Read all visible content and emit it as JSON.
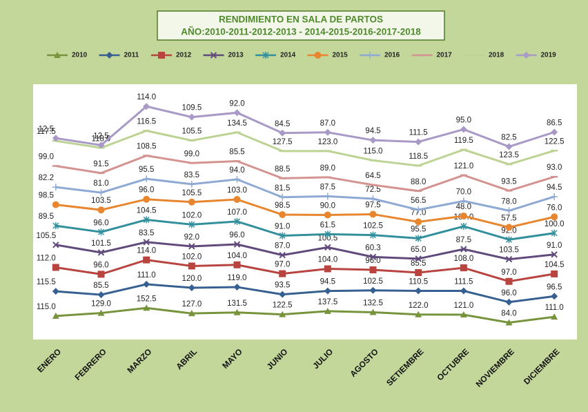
{
  "chart_data": {
    "type": "stacked_line",
    "title": "RENDIMIENTO EN SALA DE PARTOS",
    "subtitle": "AÑO:2010-2011-2012-2013 - 2014-2015-2016-2017-2018",
    "categories": [
      "ENERO",
      "FEBRERO",
      "MARZO",
      "ABRIL",
      "MAYO",
      "JUNIO",
      "JULIO",
      "AGOSTO",
      "SETIEMBRE",
      "OCTUBRE",
      "NOVIEMBRE",
      "DICIEMBRE"
    ],
    "ylim": [
      0,
      1200
    ],
    "legend": "top",
    "series": [
      {
        "name": "2010",
        "color": "#77933c",
        "marker": "triangle",
        "values": [
          115,
          129,
          152.5,
          127,
          131.5,
          122.5,
          137.5,
          132.5,
          122,
          121,
          84,
          111
        ],
        "value_labels": [
          "115.0",
          "129.0",
          "152.5",
          "127.0",
          "131.5",
          "122.5",
          "137.5",
          "132.5",
          "122.0",
          "121.0",
          "84.0",
          "111.0"
        ]
      },
      {
        "name": "2011",
        "color": "#376092",
        "marker": "diamond",
        "values": [
          115.5,
          85.5,
          111,
          120,
          119,
          93.5,
          94.5,
          102.5,
          110.5,
          111.5,
          96,
          96.5
        ],
        "value_labels": [
          "115.5",
          "85.5",
          "111.0",
          "120.0",
          "119.0",
          "93.5",
          "94.5",
          "102.5",
          "110.5",
          "111.5",
          "96.0",
          "96.5"
        ]
      },
      {
        "name": "2012",
        "color": "#b8433f",
        "marker": "square",
        "values": [
          112,
          96,
          114,
          102,
          104,
          97,
          104,
          96,
          85.5,
          108,
          97,
          104.5
        ],
        "value_labels": [
          "112.0",
          "96.0",
          "114.0",
          "102.0",
          "104.0",
          "97.0",
          "104.0",
          "96.0",
          "85.5",
          "108.0",
          "97.0",
          "104.5"
        ]
      },
      {
        "name": "2013",
        "color": "#604a7b",
        "marker": "x",
        "values": [
          105.5,
          101.5,
          83.5,
          92,
          96,
          87,
          100.5,
          60.3,
          65,
          87.5,
          103.5,
          91
        ],
        "value_labels": [
          "105.5",
          "101.5",
          "83.5",
          "92.0",
          "96.0",
          "87.0",
          "100.5",
          "60.3",
          "65.0",
          "87.5",
          "103.5",
          "91.0"
        ]
      },
      {
        "name": "2014",
        "color": "#31909c",
        "marker": "star",
        "values": [
          89.5,
          96,
          104.5,
          102,
          107,
          91,
          61.5,
          102.5,
          95.5,
          107,
          92,
          100
        ],
        "value_labels": [
          "89.5",
          "96.0",
          "104.5",
          "102.0",
          "107.0",
          "91.0",
          "61.5",
          "102.5",
          "95.5",
          "107.0",
          "92.0",
          "100.0"
        ]
      },
      {
        "name": "2015",
        "color": "#e8862f",
        "marker": "circle",
        "values": [
          98.5,
          103.5,
          96,
          105.5,
          103,
          98.5,
          90,
          97.5,
          77,
          48,
          57.5,
          76
        ],
        "value_labels": [
          "98.5",
          "103.5",
          "96.0",
          "105.5",
          "103.0",
          "98.5",
          "90.0",
          "97.5",
          "77.0",
          "48.0",
          "57.5",
          "76.0"
        ]
      },
      {
        "name": "2016",
        "color": "#8eaad4",
        "marker": "plus",
        "values": [
          82.2,
          81,
          95.5,
          83.5,
          94,
          81.5,
          87.5,
          72.5,
          56.5,
          70,
          78,
          94.5
        ],
        "value_labels": [
          "82.2",
          "81.0",
          "95.5",
          "83.5",
          "94.0",
          "81.5",
          "87.5",
          "72.5",
          "56.5",
          "70.0",
          "78.0",
          "94.5"
        ]
      },
      {
        "name": "2017",
        "color": "#d49290",
        "marker": "dash",
        "values": [
          99,
          91.5,
          108.5,
          99,
          85.5,
          88.5,
          89,
          64.5,
          88,
          121,
          93.5,
          93
        ],
        "value_labels": [
          "99.0",
          "91.5",
          "108.5",
          "99.0",
          "85.5",
          "88.5",
          "89.0",
          "64.5",
          "88.0",
          "121.0",
          "93.5",
          "93.0"
        ]
      },
      {
        "name": "2018",
        "color": "#bcd393",
        "marker": "dash",
        "values": [
          117.5,
          118,
          116.5,
          105.5,
          134.5,
          127.5,
          123,
          115,
          118.5,
          119.5,
          123.5,
          122.5
        ],
        "value_labels": [
          "117.5",
          "118.0",
          "116.5",
          "105.5",
          "134.5",
          "127.5",
          "123.0",
          "115.0",
          "118.5",
          "119.5",
          "123.5",
          "122.5"
        ]
      },
      {
        "name": "2019",
        "color": "#a899c6",
        "marker": "diamond",
        "values": [
          12.5,
          12.5,
          114,
          109.5,
          92,
          84.5,
          87,
          94.5,
          111.5,
          95,
          82.5,
          86.5
        ],
        "value_labels": [
          "12.5",
          "12.5",
          "114.0",
          "109.5",
          "92.0",
          "84.5",
          "87.0",
          "94.5",
          "111.5",
          "95.0",
          "82.5",
          "86.5"
        ]
      }
    ]
  }
}
